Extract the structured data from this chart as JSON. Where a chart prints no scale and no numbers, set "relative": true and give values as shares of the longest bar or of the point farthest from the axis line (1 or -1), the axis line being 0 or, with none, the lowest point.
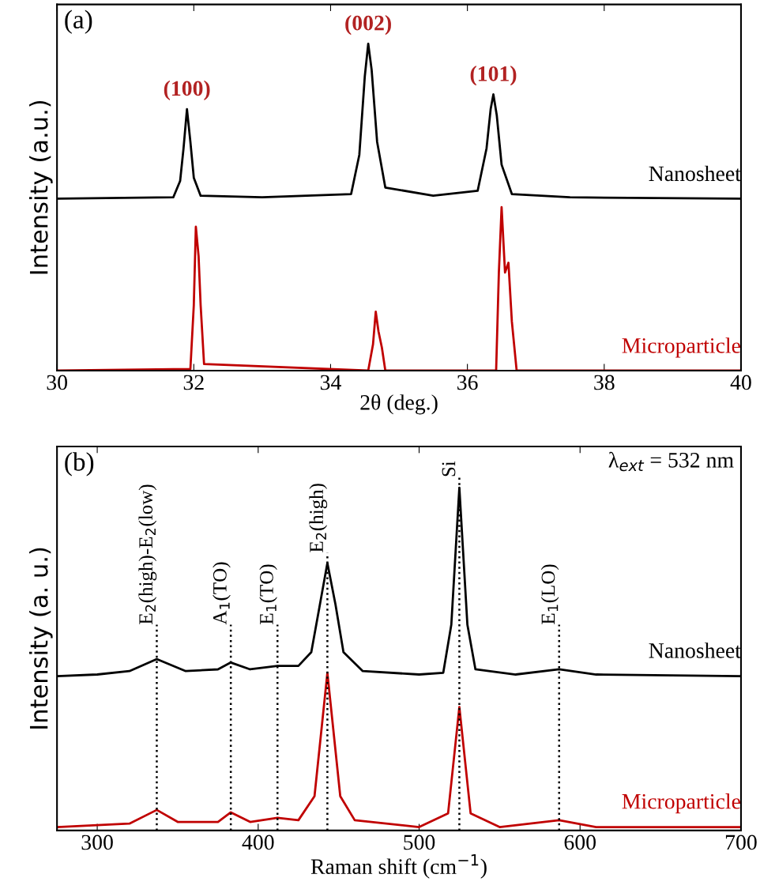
{
  "chart_data": [
    {
      "type": "line",
      "relative": true,
      "xlabel": "2θ (deg.)",
      "ylabel": "Intensity (a.u.)",
      "xlim": [
        30,
        40
      ],
      "xticks": [
        30,
        32,
        34,
        36,
        38,
        40
      ],
      "grid": false,
      "tick_labels": "x",
      "annotations": [
        "(a)",
        {
          "text": "(100)",
          "x": 31.9,
          "y": 0.8
        },
        {
          "text": "(002)",
          "x": 34.55,
          "y": 1.0
        },
        {
          "text": "(101)",
          "x": 36.38,
          "y": 0.845
        }
      ],
      "series": [
        {
          "name": "Nanosheet",
          "color": "#000000",
          "x": [
            30,
            31.7,
            31.8,
            31.85,
            31.9,
            31.95,
            32.0,
            32.1,
            33.0,
            34.3,
            34.42,
            34.5,
            34.55,
            34.6,
            34.68,
            34.8,
            35.5,
            36.15,
            36.28,
            36.34,
            36.38,
            36.43,
            36.5,
            36.65,
            37.5,
            40
          ],
          "values": [
            0.526,
            0.53,
            0.58,
            0.68,
            0.8,
            0.7,
            0.59,
            0.535,
            0.53,
            0.54,
            0.66,
            0.9,
            1.0,
            0.92,
            0.7,
            0.56,
            0.535,
            0.55,
            0.68,
            0.8,
            0.845,
            0.78,
            0.63,
            0.54,
            0.53,
            0.526
          ]
        },
        {
          "name": "Microparticle",
          "color": "#c00000",
          "x": [
            30,
            31.95,
            32.0,
            32.03,
            32.07,
            32.1,
            32.15,
            34.55,
            34.62,
            34.66,
            34.7,
            34.75,
            34.8,
            36.42,
            36.46,
            36.5,
            36.55,
            36.6,
            36.65,
            36.72,
            40
          ],
          "values": [
            0.0,
            0.005,
            0.2,
            0.44,
            0.35,
            0.2,
            0.02,
            0.0,
            0.08,
            0.18,
            0.12,
            0.07,
            0.0,
            0.0,
            0.3,
            0.5,
            0.3,
            0.33,
            0.15,
            0.0,
            0.0
          ]
        }
      ]
    },
    {
      "type": "line",
      "relative": true,
      "xlabel": "Raman shift (cm$^{−1}$)",
      "ylabel": "Intensity (a. u.)",
      "xlim": [
        275,
        700
      ],
      "xticks": [
        300,
        400,
        500,
        600,
        700
      ],
      "grid": false,
      "tick_labels": "x",
      "annotations": [
        "(b)",
        "λ$_{ext}$ = 532 nm"
      ],
      "ref_lines": [
        {
          "axis": "x",
          "value": 337,
          "label": "E$_{2}$(high)-E$_{2}$(low)",
          "line_style": "dotted"
        },
        {
          "axis": "x",
          "value": 383,
          "label": "A$_{1}$(TO)",
          "line_style": "dotted"
        },
        {
          "axis": "x",
          "value": 412,
          "label": "E$_{1}$(TO)",
          "line_style": "dotted"
        },
        {
          "axis": "x",
          "value": 443,
          "label": "E$_{2}$(high)",
          "line_style": "dotted"
        },
        {
          "axis": "x",
          "value": 525,
          "label": "Si",
          "line_style": "dotted"
        },
        {
          "axis": "x",
          "value": 587,
          "label": "E$_{1}$(LO)",
          "line_style": "dotted"
        }
      ],
      "series": [
        {
          "name": "Nanosheet",
          "color": "#000000",
          "x": [
            275,
            300,
            320,
            337,
            355,
            375,
            383,
            395,
            412,
            425,
            433,
            438,
            443,
            448,
            453,
            465,
            500,
            515,
            520,
            525,
            530,
            535,
            560,
            587,
            610,
            700
          ],
          "values": [
            0.45,
            0.455,
            0.465,
            0.5,
            0.465,
            0.47,
            0.49,
            0.47,
            0.48,
            0.48,
            0.52,
            0.65,
            0.78,
            0.66,
            0.52,
            0.465,
            0.455,
            0.46,
            0.6,
            1.0,
            0.6,
            0.47,
            0.455,
            0.47,
            0.455,
            0.45
          ]
        },
        {
          "name": "Microparticle",
          "color": "#c00000",
          "x": [
            275,
            320,
            337,
            350,
            375,
            383,
            395,
            412,
            425,
            435,
            443,
            451,
            460,
            500,
            518,
            525,
            532,
            550,
            587,
            610,
            700
          ],
          "values": [
            0.01,
            0.02,
            0.06,
            0.025,
            0.025,
            0.053,
            0.025,
            0.037,
            0.03,
            0.1,
            0.46,
            0.1,
            0.03,
            0.01,
            0.05,
            0.36,
            0.05,
            0.01,
            0.03,
            0.01,
            0.01
          ]
        }
      ]
    }
  ]
}
